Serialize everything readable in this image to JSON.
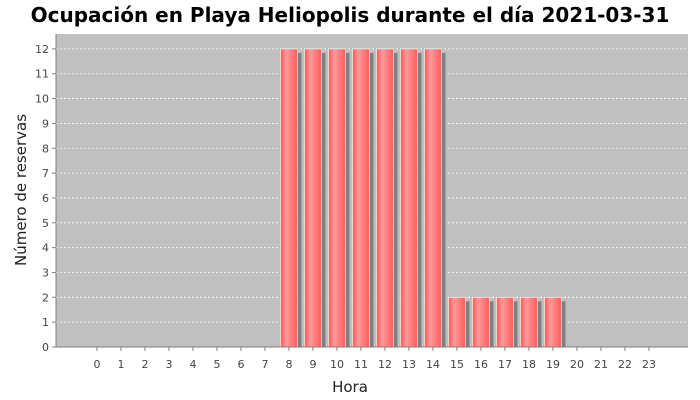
{
  "chart_data": {
    "type": "bar",
    "title": "Ocupación en Playa Heliopolis durante el día 2021-03-31",
    "xlabel": "Hora",
    "ylabel": "Número de reservas",
    "categories": [
      "0",
      "1",
      "2",
      "3",
      "4",
      "5",
      "6",
      "7",
      "8",
      "9",
      "10",
      "11",
      "12",
      "13",
      "14",
      "15",
      "16",
      "17",
      "18",
      "19",
      "20",
      "21",
      "22",
      "23"
    ],
    "values": [
      0,
      0,
      0,
      0,
      0,
      0,
      0,
      0,
      12,
      12,
      12,
      12,
      12,
      12,
      12,
      2,
      2,
      2,
      2,
      2,
      0,
      0,
      0,
      0
    ],
    "yticks": [
      "0",
      "1",
      "2",
      "3",
      "4",
      "5",
      "6",
      "7",
      "8",
      "9",
      "10",
      "11",
      "12"
    ],
    "ylim": [
      0,
      12.6
    ],
    "grid": true,
    "legend": "none",
    "colors": {
      "bar": "#ff5a5a",
      "bar_highlight": "#ff9a9a",
      "bar_shadow": "#808080",
      "plot_background": "#c0c0c0",
      "gridline": "#ffffff",
      "axis": "#808080"
    }
  }
}
